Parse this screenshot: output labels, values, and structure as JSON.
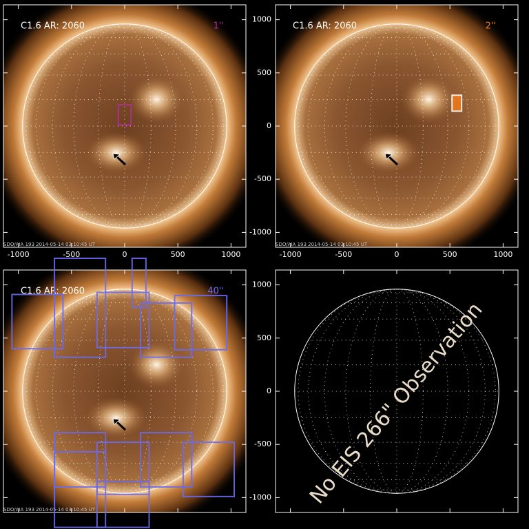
{
  "xlim": [
    -1140,
    1140
  ],
  "ylim": [
    -1140,
    1140
  ],
  "xticks": [
    -1000,
    -500,
    0,
    500,
    1000
  ],
  "yticks": [
    -1000,
    -500,
    0,
    500,
    1000
  ],
  "panels": [
    {
      "label": "C1.6 AR: 2060",
      "tag": "1''",
      "color": "#b03098",
      "footer": "SDO/AIA 193   2014-05-14 03:10:45 UT",
      "image": true,
      "x_labels": true,
      "y_labels": false,
      "raster_fill": false,
      "rasters": [
        {
          "x": [
            -60,
            60
          ],
          "y": [
            10,
            200
          ]
        }
      ]
    },
    {
      "label": "C1.6 AR: 2060",
      "tag": "2''",
      "color": "#f07818",
      "footer": "SDO/AIA 193   2014-05-14 03:10:45 UT",
      "image": true,
      "x_labels": true,
      "y_labels": true,
      "raster_fill": true,
      "rasters": [
        {
          "x": [
            520,
            610
          ],
          "y": [
            140,
            290
          ]
        }
      ]
    },
    {
      "label": "C1.6 AR: 2060",
      "tag": "40''",
      "color": "#6a6af0",
      "footer": "SDO/AIA 193   2014-05-14 03:10:45 UT",
      "image": true,
      "x_labels": false,
      "y_labels": false,
      "raster_fill": false,
      "rasters": [
        {
          "x": [
            -1060,
            -580
          ],
          "y": [
            400,
            910
          ]
        },
        {
          "x": [
            -660,
            -180
          ],
          "y": [
            320,
            1250
          ]
        },
        {
          "x": [
            -260,
            230
          ],
          "y": [
            410,
            930
          ]
        },
        {
          "x": [
            150,
            630
          ],
          "y": [
            320,
            830
          ]
        },
        {
          "x": [
            470,
            960
          ],
          "y": [
            390,
            900
          ]
        },
        {
          "x": [
            70,
            200
          ],
          "y": [
            790,
            1250
          ]
        },
        {
          "x": [
            -660,
            -180
          ],
          "y": [
            -900,
            -390
          ]
        },
        {
          "x": [
            -660,
            -180
          ],
          "y": [
            -1280,
            -570
          ]
        },
        {
          "x": [
            -260,
            230
          ],
          "y": [
            -970,
            -480
          ]
        },
        {
          "x": [
            150,
            630
          ],
          "y": [
            -900,
            -390
          ]
        },
        {
          "x": [
            550,
            1030
          ],
          "y": [
            -990,
            -480
          ]
        },
        {
          "x": [
            -260,
            230
          ],
          "y": [
            -1280,
            -850
          ]
        }
      ]
    },
    {
      "message": "No EIS 266\" Observation",
      "image": false,
      "x_labels": false,
      "y_labels": true
    }
  ]
}
